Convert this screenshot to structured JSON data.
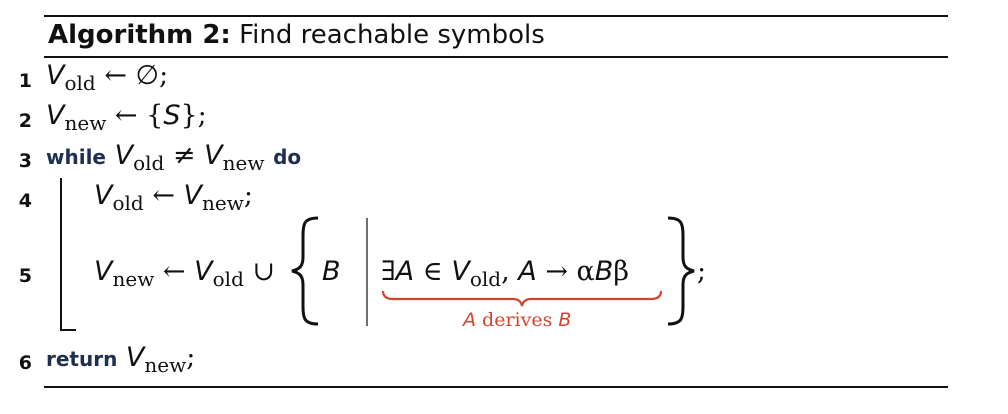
{
  "algorithm": {
    "label": "Algorithm 2:",
    "caption": "Find reachable symbols"
  },
  "lines": {
    "l1": {
      "no": "1",
      "var": "V",
      "sub": "old",
      "op": "←",
      "rhs": "∅",
      "end": ";"
    },
    "l2": {
      "no": "2",
      "var": "V",
      "sub": "new",
      "op": "←",
      "rhs_open": "{",
      "rhs_sym": "S",
      "rhs_close": "}",
      "end": ";"
    },
    "l3": {
      "no": "3",
      "kw_while": "while",
      "a": "V",
      "a_sub": "old",
      "neq": "≠",
      "b": "V",
      "b_sub": "new",
      "kw_do": "do"
    },
    "l4": {
      "no": "4",
      "a": "V",
      "a_sub": "old",
      "op": "←",
      "b": "V",
      "b_sub": "new",
      "end": ";"
    },
    "l5": {
      "no": "5",
      "a": "V",
      "a_sub": "new",
      "op": "←",
      "b": "V",
      "b_sub": "old",
      "union": "∪",
      "elem": "B",
      "cond_exists": "∃",
      "cond_A": "A",
      "cond_in": "∈",
      "cond_V": "V",
      "cond_V_sub": "old",
      "comma": ",",
      "cond_A2": "A",
      "arrow": "→",
      "alpha": "α",
      "cond_B": "B",
      "beta": "β",
      "end": ";",
      "brace_note": {
        "A": "A",
        "text": "derives",
        "B": "B"
      }
    },
    "l6": {
      "no": "6",
      "kw_return": "return",
      "var": "V",
      "sub": "new",
      "end": ";"
    }
  },
  "colors": {
    "keyword": "#1e2f4f",
    "annotation": "#d0462e",
    "rule": "#111111"
  }
}
